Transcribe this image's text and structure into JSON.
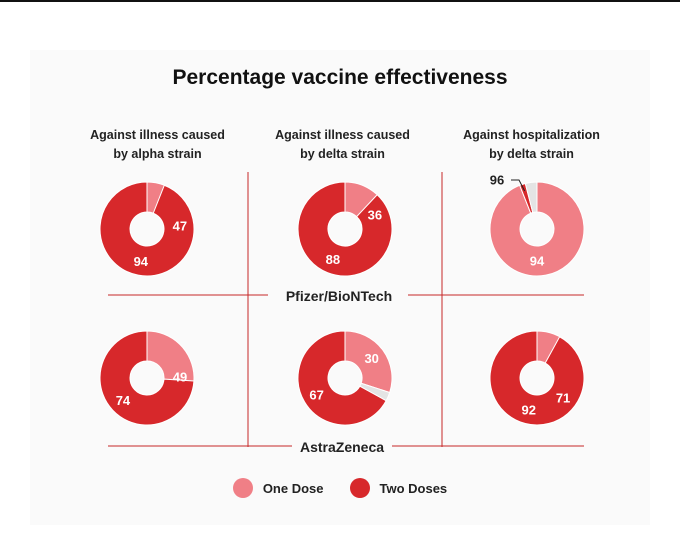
{
  "chart_data": {
    "type": "donut",
    "title": "Percentage vaccine effectiveness",
    "columns": [
      {
        "line1": "Against illness caused",
        "line2": "by alpha strain"
      },
      {
        "line1": "Against illness caused",
        "line2": "by delta strain"
      },
      {
        "line1": "Against hospitalization",
        "line2": "by delta strain"
      }
    ],
    "rows": [
      "Pfizer/BioNTech",
      "AstraZeneca"
    ],
    "series": [
      {
        "name": "One Dose",
        "color": "#f07f86"
      },
      {
        "name": "Two Doses",
        "color": "#d7282b"
      }
    ],
    "remainder_color": "#e4e4e4",
    "cells": [
      {
        "row": 0,
        "col": 0,
        "one_dose": 47,
        "two_doses": 94
      },
      {
        "row": 0,
        "col": 1,
        "one_dose": 36,
        "two_doses": 88
      },
      {
        "row": 0,
        "col": 2,
        "one_dose": 94,
        "two_doses": 96
      },
      {
        "row": 1,
        "col": 0,
        "one_dose": 49,
        "two_doses": 74
      },
      {
        "row": 1,
        "col": 1,
        "one_dose": 30,
        "two_doses": 67
      },
      {
        "row": 1,
        "col": 2,
        "one_dose": 71,
        "two_doses": 92
      }
    ]
  }
}
